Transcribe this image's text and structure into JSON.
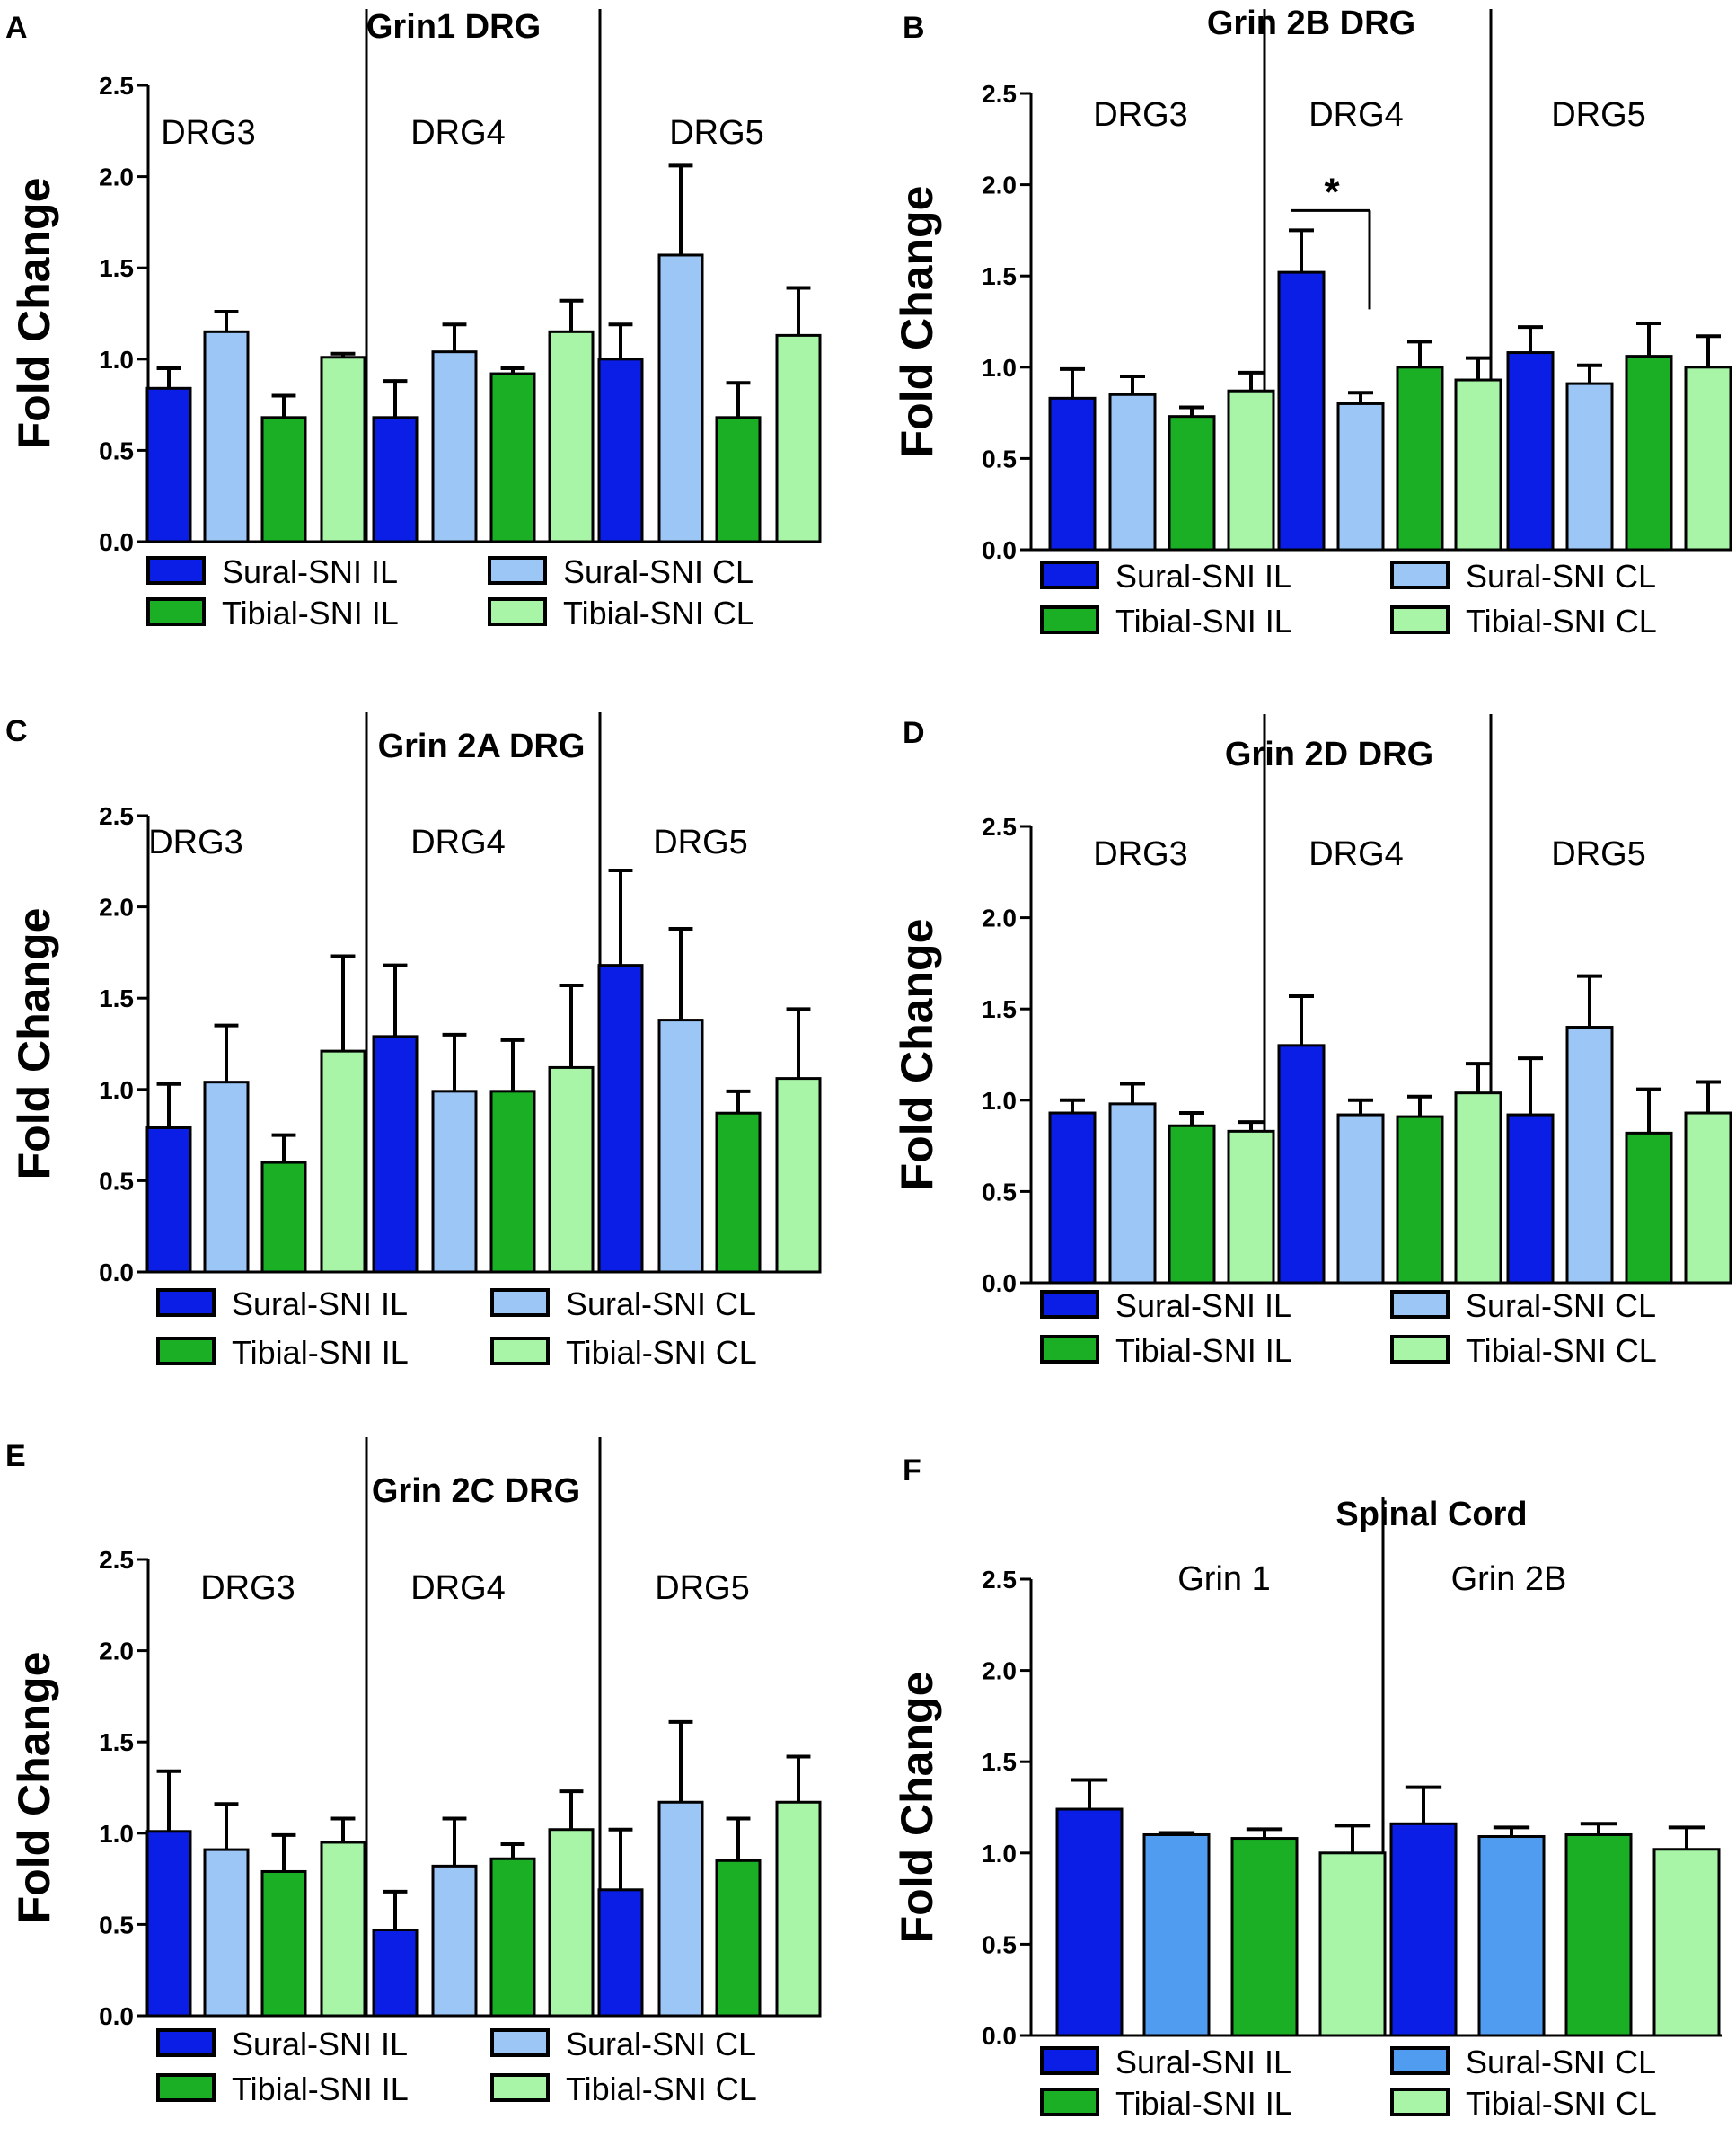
{
  "colors": {
    "sural_il": "#0a1ee6",
    "sural_cl": "#9cc6f6",
    "tibial_il": "#1aaf24",
    "tibial_cl": "#a8f5a8",
    "sural_cl_f": "#4f9cf0",
    "outline": "#000000"
  },
  "chart_data": [
    {
      "type": "bar",
      "panel": "A",
      "title_gene": "Grin1",
      "title_tissue": "DRG",
      "ylabel": "Fold Change",
      "ylim": [
        0,
        2.5
      ],
      "yticks": [
        "0.0",
        "0.5",
        "1.0",
        "1.5",
        "2.0",
        "2.5"
      ],
      "groups": [
        "DRG3",
        "DRG4",
        "DRG5"
      ],
      "series": [
        {
          "name": "Sural-SNI IL",
          "values": [
            0.84,
            0.68,
            1.0
          ],
          "errors": [
            0.11,
            0.2,
            0.19
          ]
        },
        {
          "name": "Sural-SNI CL",
          "values": [
            1.15,
            1.04,
            1.57
          ],
          "errors": [
            0.11,
            0.15,
            0.49
          ]
        },
        {
          "name": "Tibial-SNI IL",
          "values": [
            0.68,
            0.92,
            0.68
          ],
          "errors": [
            0.12,
            0.03,
            0.19
          ]
        },
        {
          "name": "Tibial-SNI CL",
          "values": [
            1.01,
            1.15,
            1.13
          ],
          "errors": [
            0.02,
            0.17,
            0.26
          ]
        }
      ],
      "annotations": []
    },
    {
      "type": "bar",
      "panel": "B",
      "title_gene": "Grin 2B",
      "title_tissue": "DRG",
      "ylabel": "Fold Change",
      "ylim": [
        0,
        2.5
      ],
      "yticks": [
        "0.0",
        "0.5",
        "1.0",
        "1.5",
        "2.0",
        "2.5"
      ],
      "groups": [
        "DRG3",
        "DRG4",
        "DRG5"
      ],
      "series": [
        {
          "name": "Sural-SNI IL",
          "values": [
            0.83,
            1.52,
            1.08
          ],
          "errors": [
            0.16,
            0.23,
            0.14
          ]
        },
        {
          "name": "Sural-SNI CL",
          "values": [
            0.85,
            0.8,
            0.91
          ],
          "errors": [
            0.1,
            0.06,
            0.1
          ]
        },
        {
          "name": "Tibial-SNI IL",
          "values": [
            0.73,
            1.0,
            1.06
          ],
          "errors": [
            0.05,
            0.14,
            0.18
          ]
        },
        {
          "name": "Tibial-SNI CL",
          "values": [
            0.87,
            0.93,
            1.0
          ],
          "errors": [
            0.1,
            0.12,
            0.17
          ]
        }
      ],
      "annotations": [
        {
          "text": "*",
          "group": 1,
          "from_series": 0,
          "to_series": 1
        }
      ]
    },
    {
      "type": "bar",
      "panel": "C",
      "title_gene": "Grin 2A",
      "title_tissue": "DRG",
      "ylabel": "Fold Change",
      "ylim": [
        0,
        2.5
      ],
      "yticks": [
        "0.0",
        "0.5",
        "1.0",
        "1.5",
        "2.0",
        "2.5"
      ],
      "groups": [
        "DRG3",
        "DRG4",
        "DRG5"
      ],
      "series": [
        {
          "name": "Sural-SNI IL",
          "values": [
            0.79,
            1.29,
            1.68
          ],
          "errors": [
            0.24,
            0.39,
            0.52
          ]
        },
        {
          "name": "Sural-SNI CL",
          "values": [
            1.04,
            0.99,
            1.38
          ],
          "errors": [
            0.31,
            0.31,
            0.5
          ]
        },
        {
          "name": "Tibial-SNI IL",
          "values": [
            0.6,
            0.99,
            0.87
          ],
          "errors": [
            0.15,
            0.28,
            0.12
          ]
        },
        {
          "name": "Tibial-SNI CL",
          "values": [
            1.21,
            1.12,
            1.06
          ],
          "errors": [
            0.52,
            0.45,
            0.38
          ]
        }
      ],
      "annotations": []
    },
    {
      "type": "bar",
      "panel": "D",
      "title_gene": "Grin 2D",
      "title_tissue": "DRG",
      "ylabel": "Fold Change",
      "ylim": [
        0,
        2.5
      ],
      "yticks": [
        "0.0",
        "0.5",
        "1.0",
        "1.5",
        "2.0",
        "2.5"
      ],
      "groups": [
        "DRG3",
        "DRG4",
        "DRG5"
      ],
      "series": [
        {
          "name": "Sural-SNI IL",
          "values": [
            0.93,
            1.3,
            0.92
          ],
          "errors": [
            0.07,
            0.27,
            0.31
          ]
        },
        {
          "name": "Sural-SNI CL",
          "values": [
            0.98,
            0.92,
            1.4
          ],
          "errors": [
            0.11,
            0.08,
            0.28
          ]
        },
        {
          "name": "Tibial-SNI IL",
          "values": [
            0.86,
            0.91,
            0.82
          ],
          "errors": [
            0.07,
            0.11,
            0.24
          ]
        },
        {
          "name": "Tibial-SNI CL",
          "values": [
            0.83,
            1.04,
            0.93
          ],
          "errors": [
            0.05,
            0.16,
            0.17
          ]
        }
      ],
      "annotations": []
    },
    {
      "type": "bar",
      "panel": "E",
      "title_gene": "Grin 2C",
      "title_tissue": "DRG",
      "ylabel": "Fold Change",
      "ylim": [
        0,
        2.5
      ],
      "yticks": [
        "0.0",
        "0.5",
        "1.0",
        "1.5",
        "2.0",
        "2.5"
      ],
      "groups": [
        "DRG3",
        "DRG4",
        "DRG5"
      ],
      "series": [
        {
          "name": "Sural-SNI IL",
          "values": [
            1.01,
            0.47,
            0.69
          ],
          "errors": [
            0.33,
            0.21,
            0.33
          ]
        },
        {
          "name": "Sural-SNI CL",
          "values": [
            0.91,
            0.82,
            1.17
          ],
          "errors": [
            0.25,
            0.26,
            0.44
          ]
        },
        {
          "name": "Tibial-SNI IL",
          "values": [
            0.79,
            0.86,
            0.85
          ],
          "errors": [
            0.2,
            0.08,
            0.23
          ]
        },
        {
          "name": "Tibial-SNI CL",
          "values": [
            0.95,
            1.02,
            1.17
          ],
          "errors": [
            0.13,
            0.21,
            0.25
          ]
        }
      ],
      "annotations": []
    },
    {
      "type": "bar",
      "panel": "F",
      "title_gene": "Spinal Cord",
      "title_tissue": "",
      "ylabel": "Fold Change",
      "ylim": [
        0,
        2.5
      ],
      "yticks": [
        "0.0",
        "0.5",
        "1.0",
        "1.5",
        "2.0",
        "2.5"
      ],
      "groups": [
        "Grin 1",
        "Grin 2B"
      ],
      "series": [
        {
          "name": "Sural-SNI IL",
          "values": [
            1.24,
            1.16
          ],
          "errors": [
            0.16,
            0.2
          ]
        },
        {
          "name": "Sural-SNI CL",
          "values": [
            1.1,
            1.09
          ],
          "errors": [
            0.01,
            0.05
          ]
        },
        {
          "name": "Tibial-SNI IL",
          "values": [
            1.08,
            1.1
          ],
          "errors": [
            0.05,
            0.06
          ]
        },
        {
          "name": "Tibial-SNI CL",
          "values": [
            1.0,
            1.02
          ],
          "errors": [
            0.15,
            0.12
          ]
        }
      ],
      "annotations": []
    }
  ]
}
